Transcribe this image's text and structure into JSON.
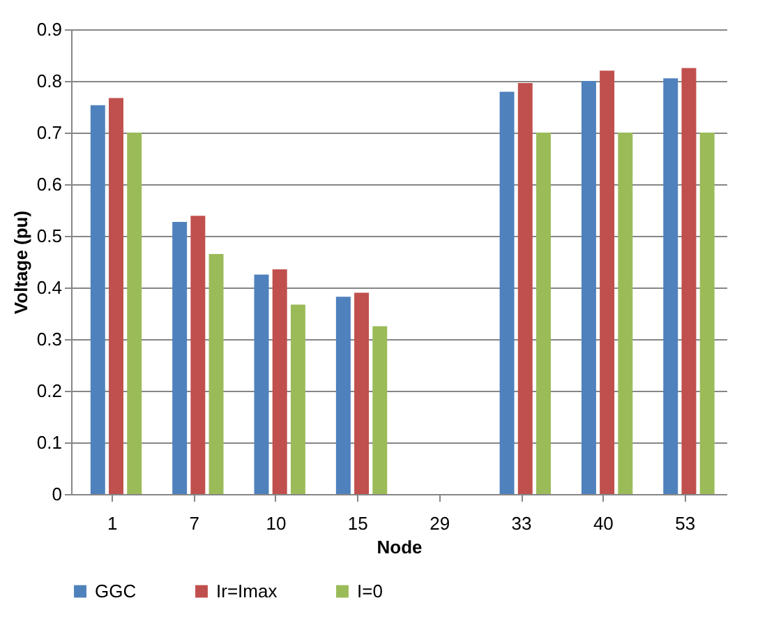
{
  "chart_data": {
    "type": "bar",
    "xlabel": "Node",
    "ylabel": "Voltage (pu)",
    "categories": [
      "1",
      "7",
      "10",
      "15",
      "29",
      "33",
      "40",
      "53"
    ],
    "series": [
      {
        "name": "GGC",
        "color": "#4f81bd",
        "values": [
          0.753,
          0.527,
          0.425,
          0.382,
          0,
          0.779,
          0.8,
          0.805
        ]
      },
      {
        "name": "Ir=Imax",
        "color": "#c0504d",
        "values": [
          0.767,
          0.539,
          0.435,
          0.39,
          0,
          0.796,
          0.82,
          0.825
        ]
      },
      {
        "name": "I=0",
        "color": "#9bbb59",
        "values": [
          0.7,
          0.465,
          0.367,
          0.325,
          0,
          0.7,
          0.7,
          0.7
        ]
      }
    ],
    "ylim": [
      0,
      0.9
    ],
    "yticks": [
      0,
      0.1,
      0.2,
      0.3,
      0.4,
      0.5,
      0.6,
      0.7,
      0.8,
      0.9
    ],
    "grid": "y",
    "legend": "bottom"
  }
}
